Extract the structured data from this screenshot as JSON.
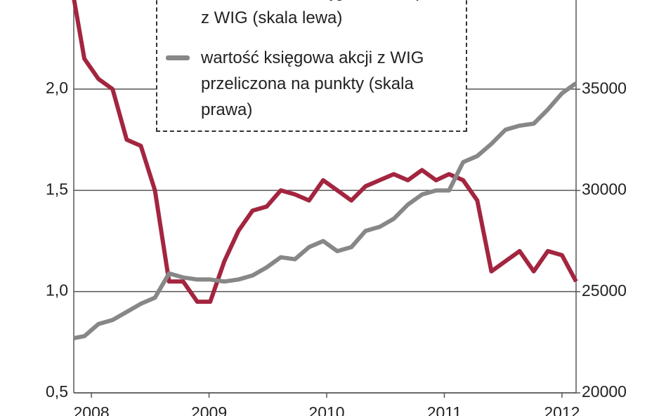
{
  "chart_data": {
    "type": "line",
    "x": [
      2007.85,
      2007.94,
      2008.06,
      2008.18,
      2008.3,
      2008.42,
      2008.54,
      2008.66,
      2008.78,
      2008.9,
      2009.01,
      2009.13,
      2009.25,
      2009.37,
      2009.49,
      2009.61,
      2009.73,
      2009.85,
      2009.97,
      2010.09,
      2010.21,
      2010.33,
      2010.45,
      2010.57,
      2010.69,
      2010.81,
      2010.93,
      2011.04,
      2011.16,
      2011.28,
      2011.4,
      2011.52,
      2011.64,
      2011.76,
      2011.88,
      2012.0,
      2012.12
    ],
    "series": [
      {
        "name": "cena/wartość księgowa dla spółek z WIG (skala lewa)",
        "color": "#a3253f",
        "values": [
          2.45,
          2.15,
          2.05,
          2.0,
          1.75,
          1.72,
          1.5,
          1.05,
          1.05,
          0.95,
          0.95,
          1.15,
          1.3,
          1.4,
          1.42,
          1.5,
          1.48,
          1.45,
          1.55,
          1.5,
          1.45,
          1.52,
          1.55,
          1.58,
          1.55,
          1.6,
          1.55,
          1.58,
          1.55,
          1.45,
          1.1,
          1.15,
          1.2,
          1.1,
          1.2,
          1.18,
          1.05
        ]
      },
      {
        "name": "wartość księgowa akcji z WIG przeliczona na punkty (skala prawa)",
        "color": "#878787",
        "axis": "y2",
        "values": [
          22700,
          22800,
          23400,
          23600,
          24000,
          24400,
          24700,
          25900,
          25700,
          25600,
          25600,
          25500,
          25600,
          25800,
          26200,
          26700,
          26600,
          27200,
          27500,
          27000,
          27200,
          28000,
          28200,
          28600,
          29300,
          29800,
          30000,
          30000,
          31400,
          31700,
          32300,
          33000,
          33200,
          33300,
          34000,
          34800,
          35300
        ]
      }
    ],
    "xlim": [
      2007.85,
      2012.12
    ],
    "xticks": [
      2008,
      2009,
      2010,
      2011,
      2012
    ],
    "ylim": [
      0.5,
      2.44
    ],
    "yticks": [
      {
        "value": 0.5,
        "label": "0,5"
      },
      {
        "value": 1.0,
        "label": "1,0"
      },
      {
        "value": 1.5,
        "label": "1,5"
      },
      {
        "value": 2.0,
        "label": "2,0"
      }
    ],
    "y2lim": [
      20000,
      39410
    ],
    "y2ticks": [
      20000,
      25000,
      30000,
      35000
    ],
    "grid": true
  }
}
